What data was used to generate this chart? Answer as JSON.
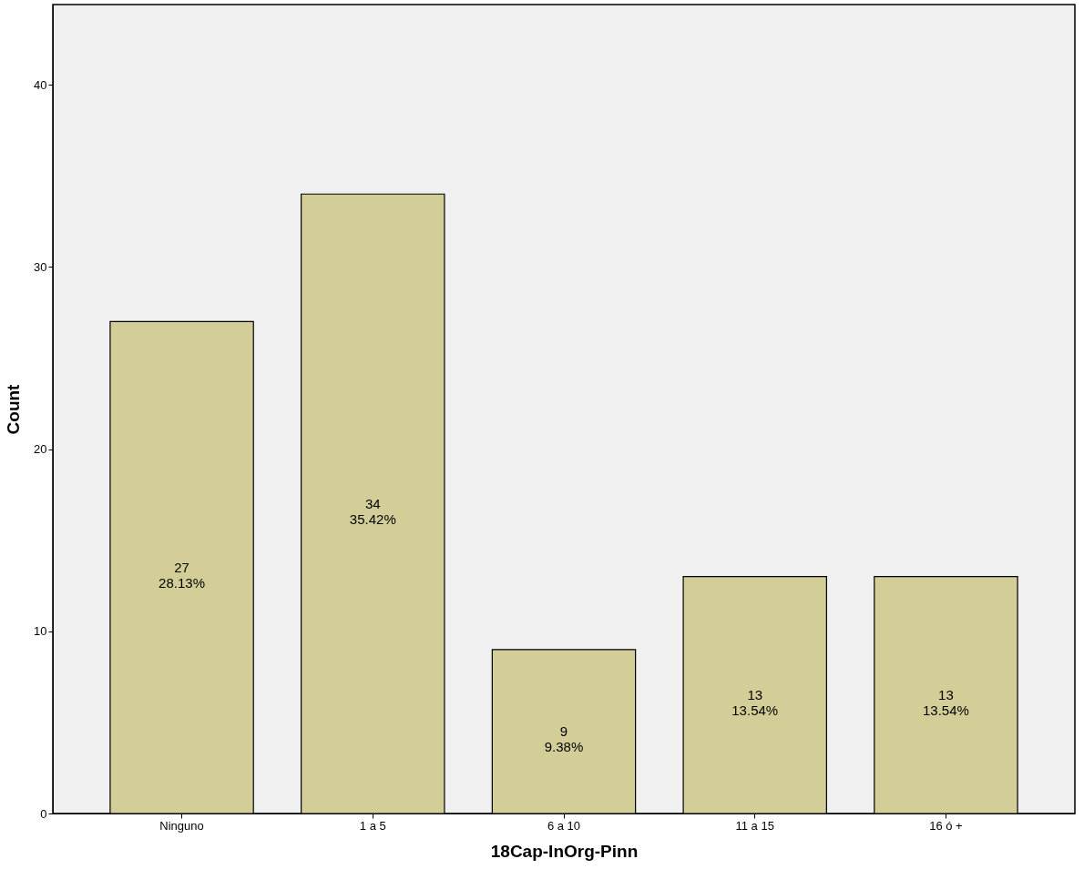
{
  "chart_data": {
    "type": "bar",
    "xlabel": "18Cap-InOrg-Pinn",
    "ylabel": "Count",
    "categories": [
      "Ninguno",
      "1 a 5",
      "6 a 10",
      "11 a 15",
      "16 ó +"
    ],
    "values": [
      27,
      34,
      9,
      13,
      13
    ],
    "color": "#d3ce97",
    "value_labels": [
      "27\n28.13%",
      "34\n35.42%",
      "9\n9.38%",
      "13\n13.54%",
      "13\n13.54%"
    ],
    "ylim": [
      0,
      44.4
    ],
    "yticks": [
      0,
      10,
      20,
      30,
      40
    ],
    "grid": false
  }
}
